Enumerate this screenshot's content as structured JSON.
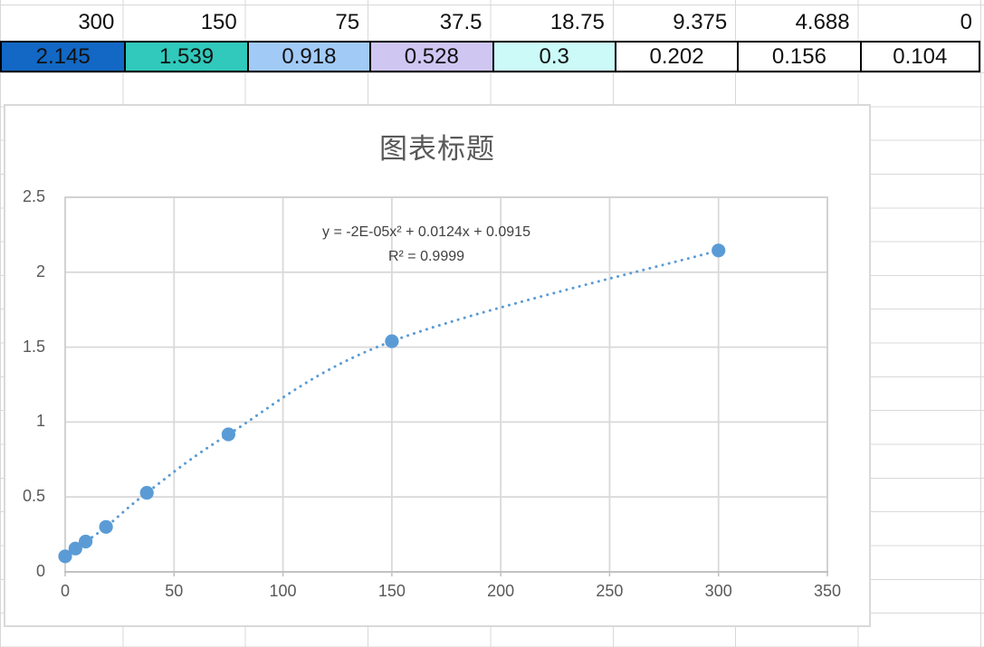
{
  "colors": {
    "marker": "#5B9BD5",
    "trendline": "#5B9BD5",
    "plot_gridline": "#D9D9D9",
    "plot_border": "#D0D0D0",
    "axis_line": "#BFBFBF",
    "sheet_gridline": "#D8D8D8",
    "title_text": "#595959",
    "tick_text": "#595959",
    "equation_text": "#404040",
    "cell_border": "#000000"
  },
  "table": {
    "concentrations": [
      "300",
      "150",
      "75",
      "37.5",
      "18.75",
      "9.375",
      "4.688",
      "0"
    ],
    "readings": [
      {
        "value": "2.145",
        "bg": "#1268C4"
      },
      {
        "value": "1.539",
        "bg": "#30C9BB"
      },
      {
        "value": "0.918",
        "bg": "#A1CAF7"
      },
      {
        "value": "0.528",
        "bg": "#CFC6F2"
      },
      {
        "value": "0.3",
        "bg": "#CBFAF8"
      },
      {
        "value": "0.202",
        "bg": "#FFFFFF"
      },
      {
        "value": "0.156",
        "bg": "#FFFFFF"
      },
      {
        "value": "0.104",
        "bg": "#FFFFFF"
      }
    ]
  },
  "chart_data": {
    "type": "scatter",
    "title": "图表标题",
    "x": [
      0,
      4.688,
      9.375,
      18.75,
      37.5,
      75,
      150,
      300
    ],
    "y": [
      0.104,
      0.156,
      0.202,
      0.3,
      0.528,
      0.918,
      1.539,
      2.145
    ],
    "xlim": [
      0,
      350
    ],
    "ylim": [
      0,
      2.5
    ],
    "x_ticks": [
      "0",
      "50",
      "100",
      "150",
      "200",
      "250",
      "300",
      "350"
    ],
    "y_ticks": [
      "0",
      "0.5",
      "1",
      "1.5",
      "2",
      "2.5"
    ],
    "grid": true,
    "legend": "none",
    "marker_style": "circle-dotted-trendline",
    "trendline": {
      "kind": "polynomial-order-2",
      "equation": "y = -2E-05x² + 0.0124x + 0.0915",
      "r2": "R² = 0.9999"
    }
  }
}
